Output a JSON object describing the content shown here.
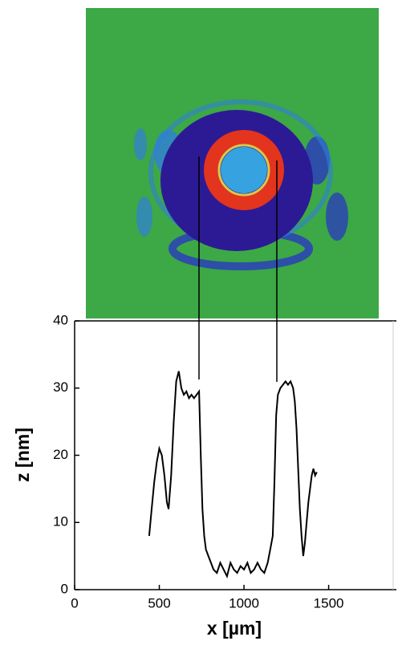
{
  "chart_data": {
    "type": "line",
    "xlabel": "x [µm]",
    "ylabel": "z [nm]",
    "color": "#000000",
    "xlim": [
      0,
      1900
    ],
    "xticks": [
      0,
      500,
      1000,
      1500
    ],
    "ylim": [
      0,
      40
    ],
    "yticks": [
      0,
      10,
      20,
      30,
      40
    ],
    "series": [
      {
        "x": [
          440,
          455,
          470,
          485,
          500,
          515,
          530,
          545,
          555,
          570,
          585,
          600,
          615,
          630,
          645,
          660,
          675,
          690,
          705,
          720,
          735,
          745,
          755,
          765,
          775,
          790,
          805,
          820,
          840,
          860,
          880,
          900,
          920,
          940,
          960,
          980,
          1000,
          1020,
          1040,
          1060,
          1080,
          1100,
          1120,
          1140,
          1155,
          1170,
          1180,
          1190,
          1200,
          1215,
          1230,
          1245,
          1260,
          1275,
          1290,
          1300,
          1310,
          1320,
          1330,
          1340,
          1350,
          1360,
          1370,
          1380,
          1390,
          1400,
          1410,
          1420,
          1430
        ],
        "values": [
          8,
          12,
          16,
          19,
          21,
          20,
          17,
          13,
          12,
          17,
          25,
          31,
          32.5,
          30,
          29,
          29.5,
          28.5,
          29,
          28.5,
          29,
          29.5,
          20,
          12,
          8,
          6,
          5,
          4,
          3,
          2.5,
          4,
          3,
          2,
          4,
          3,
          2.5,
          3.5,
          3,
          4,
          2.5,
          3,
          4,
          3,
          2.5,
          4,
          6,
          8,
          16,
          26,
          29,
          30,
          30.5,
          31,
          30.5,
          31,
          30,
          28,
          24,
          18,
          12,
          8,
          5,
          7,
          10,
          13,
          15,
          17,
          18,
          17,
          17.5
        ]
      }
    ]
  }
}
